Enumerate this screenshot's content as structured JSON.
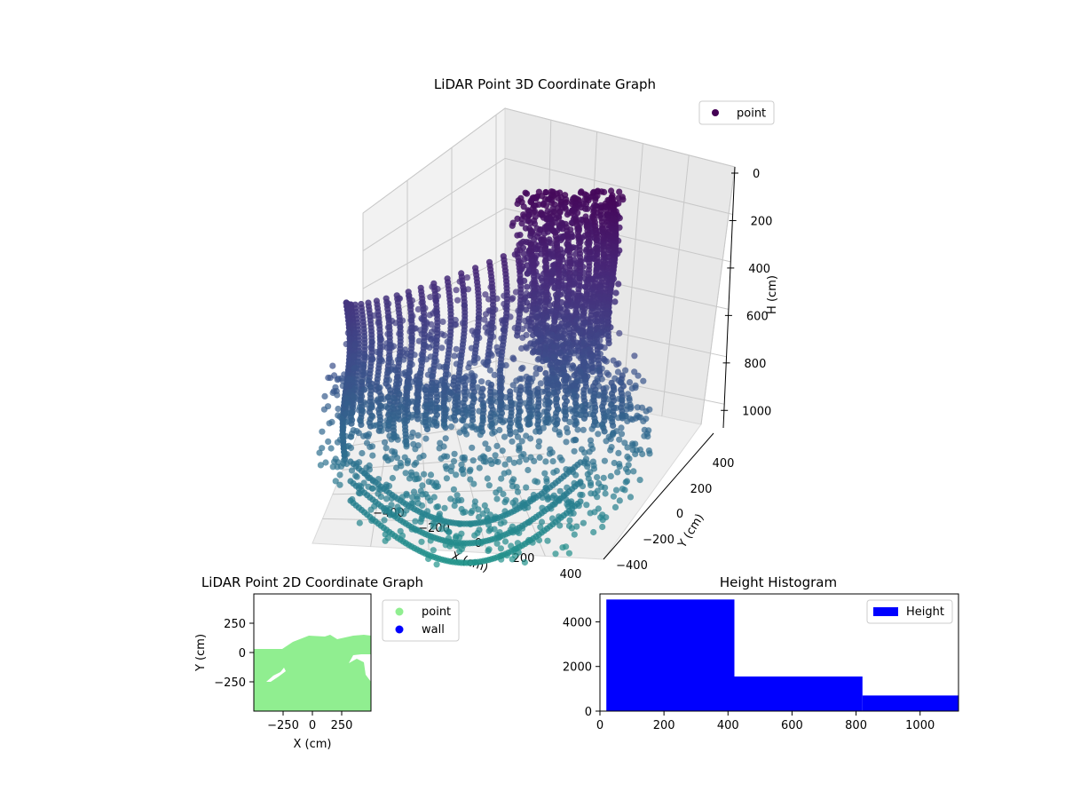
{
  "chart_data": [
    {
      "type": "scatter",
      "projection": "3d",
      "title": "LiDAR Point 3D Coordinate Graph",
      "xlabel": "X (cm)",
      "ylabel": "Y (cm)",
      "zlabel": "H (cm)",
      "xticks": [
        "−400",
        "−200",
        "0",
        "200",
        "400"
      ],
      "yticks": [
        "−400",
        "−200",
        "0",
        "200",
        "400"
      ],
      "zticks": [
        "0",
        "200",
        "400",
        "600",
        "800",
        "1000"
      ],
      "xlim": [
        -500,
        500
      ],
      "ylim": [
        -500,
        500
      ],
      "zlim": [
        0,
        1100
      ],
      "z_inverted": true,
      "grid": true,
      "legend": {
        "position": "top-right",
        "entries": [
          {
            "label": "point",
            "color": "#440154"
          }
        ]
      },
      "colormap": "viridis",
      "series": [
        {
          "name": "point"
        }
      ]
    },
    {
      "type": "scatter",
      "title": "LiDAR Point 2D Coordinate Graph",
      "xlabel": "X (cm)",
      "ylabel": "Y (cm)",
      "xticks": [
        "−250",
        "0",
        "250"
      ],
      "yticks": [
        "250",
        "0",
        "−250"
      ],
      "xlim": [
        -500,
        500
      ],
      "ylim": [
        -500,
        500
      ],
      "legend": {
        "position": "outside-right",
        "entries": [
          {
            "label": "point",
            "color": "#90ee90"
          },
          {
            "label": "wall",
            "color": "#0000ff"
          }
        ]
      },
      "series": [
        {
          "name": "point",
          "color": "#90ee90"
        },
        {
          "name": "wall",
          "color": "#0000ff"
        }
      ]
    },
    {
      "type": "bar",
      "subtype": "histogram",
      "title": "Height Histogram",
      "xticks": [
        "0",
        "200",
        "400",
        "600",
        "800",
        "1000"
      ],
      "yticks": [
        "0",
        "2000",
        "4000"
      ],
      "xlim": [
        0,
        1120
      ],
      "ylim": [
        0,
        5250
      ],
      "bins": [
        {
          "from": 20,
          "to": 420,
          "count": 5000
        },
        {
          "from": 420,
          "to": 820,
          "count": 1550
        },
        {
          "from": 820,
          "to": 1120,
          "count": 700
        }
      ],
      "legend": {
        "position": "top-right",
        "entries": [
          {
            "label": "Height",
            "color": "#0000ff"
          }
        ]
      },
      "series": [
        {
          "name": "Height",
          "color": "#0000ff"
        }
      ]
    }
  ]
}
